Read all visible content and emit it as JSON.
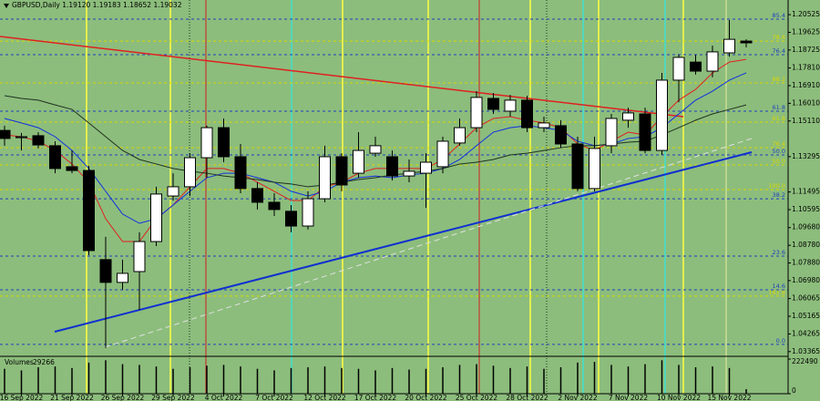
{
  "chart_data": {
    "type": "candlestick",
    "title": "GBPUSD,Daily  1.19120 1.19183 1.18652 1.19032",
    "categories": [
      null,
      "16 Sep 2022",
      null,
      null,
      "21 Sep 2022",
      null,
      null,
      "26 Sep 2022",
      null,
      null,
      "29 Sep 2022",
      null,
      null,
      "4 Oct 2022",
      null,
      null,
      "7 Oct 2022",
      null,
      null,
      "12 Oct 2022",
      null,
      null,
      "17 Oct 2022",
      null,
      null,
      "20 Oct 2022",
      null,
      null,
      "25 Oct 2022",
      null,
      null,
      "28 Oct 2022",
      null,
      null,
      "2 Nov 2022",
      null,
      null,
      "7 Nov 2022",
      null,
      null,
      "10 Nov 2022",
      null,
      null,
      "15 Nov 2022",
      null
    ],
    "open": [
      1.1463,
      1.1426,
      1.1436,
      1.1385,
      1.1278,
      1.1259,
      1.0805,
      1.0689,
      1.0744,
      1.0897,
      1.1129,
      1.1176,
      1.1324,
      1.1477,
      1.1329,
      1.1167,
      1.1097,
      1.1051,
      1.0976,
      1.1115,
      1.1329,
      1.1245,
      1.1347,
      1.1329,
      1.1231,
      1.1245,
      1.1278,
      1.1399,
      1.1477,
      1.1626,
      1.1561,
      1.1617,
      1.1477,
      1.1487,
      1.1394,
      1.1167,
      1.1385,
      1.1515,
      1.1547,
      1.1361,
      1.1719,
      1.1811,
      1.1765,
      1.1858,
      1.1918
    ],
    "high": [
      1.1487,
      1.145,
      1.1454,
      1.1408,
      1.1361,
      1.1283,
      1.0921,
      1.0805,
      1.0944,
      1.1176,
      1.1245,
      1.1347,
      1.1487,
      1.1524,
      1.1394,
      1.1199,
      1.1143,
      1.1083,
      1.1153,
      1.1385,
      1.1347,
      1.1454,
      1.1431,
      1.1361,
      1.1315,
      1.1347,
      1.1431,
      1.1524,
      1.1663,
      1.1654,
      1.1644,
      1.164,
      1.1533,
      1.1515,
      1.1431,
      1.1431,
      1.1547,
      1.1579,
      1.1579,
      1.1756,
      1.1849,
      1.1849,
      1.1895,
      1.2025,
      1.1927
    ],
    "low": [
      1.1385,
      1.1361,
      1.1371,
      1.1245,
      1.1245,
      1.0828,
      1.0355,
      1.0651,
      1.0549,
      1.0874,
      1.1106,
      1.1129,
      1.1222,
      1.1301,
      1.1143,
      1.106,
      1.1027,
      1.0944,
      1.0958,
      1.1097,
      1.1153,
      1.1222,
      1.1329,
      1.1208,
      1.1199,
      1.1069,
      1.1245,
      1.1385,
      1.1454,
      1.1547,
      1.1533,
      1.1454,
      1.1454,
      1.1375,
      1.1153,
      1.1153,
      1.1347,
      1.1477,
      1.1347,
      1.1338,
      1.1607,
      1.1747,
      1.1733,
      1.1839,
      1.1886
    ],
    "close": [
      1.1422,
      1.1431,
      1.1389,
      1.1269,
      1.1259,
      1.0851,
      1.0689,
      1.0735,
      1.0897,
      1.1139,
      1.1176,
      1.1324,
      1.1477,
      1.1329,
      1.1167,
      1.1097,
      1.106,
      1.0976,
      1.1115,
      1.1329,
      1.1185,
      1.1361,
      1.1385,
      1.1231,
      1.1255,
      1.1301,
      1.1408,
      1.1477,
      1.1631,
      1.157,
      1.1617,
      1.1477,
      1.1501,
      1.1394,
      1.1167,
      1.1371,
      1.1524,
      1.1552,
      1.1361,
      1.1719,
      1.1835,
      1.1765,
      1.1863,
      1.1927,
      1.1909
    ],
    "up_color": "#ffffff",
    "down_color": "#000000",
    "lines": [
      {
        "color": "#e02020",
        "values": [
          1.144,
          1.1431,
          1.1408,
          1.1361,
          1.1292,
          1.1199,
          1.1013,
          1.0897,
          1.0897,
          1.1013,
          1.1083,
          1.1176,
          1.1269,
          1.1269,
          1.1245,
          1.1199,
          1.1153,
          1.1106,
          1.1106,
          1.1176,
          1.1199,
          1.1245,
          1.1269,
          1.1269,
          1.1269,
          1.1269,
          1.1315,
          1.1394,
          1.1477,
          1.1524,
          1.1533,
          1.1515,
          1.1501,
          1.1477,
          1.1394,
          1.1361,
          1.1408,
          1.1454,
          1.144,
          1.1533,
          1.1617,
          1.1672,
          1.1756,
          1.1811,
          1.1825
        ]
      },
      {
        "color": "#1030e0",
        "values": [
          1.1524,
          1.1501,
          1.1477,
          1.1431,
          1.1361,
          1.1269,
          1.1153,
          1.1037,
          1.099,
          1.1013,
          1.1083,
          1.1153,
          1.1222,
          1.1245,
          1.1245,
          1.1222,
          1.1199,
          1.1153,
          1.1129,
          1.1153,
          1.1199,
          1.1222,
          1.1231,
          1.1222,
          1.1236,
          1.1245,
          1.1269,
          1.1315,
          1.1385,
          1.1454,
          1.1477,
          1.1487,
          1.1477,
          1.1463,
          1.1408,
          1.1385,
          1.1394,
          1.1422,
          1.1431,
          1.1477,
          1.1547,
          1.1617,
          1.1663,
          1.1719,
          1.1756
        ]
      },
      {
        "color": "#203020",
        "values": [
          1.164,
          1.1626,
          1.1617,
          1.1593,
          1.157,
          1.1501,
          1.1431,
          1.1361,
          1.1315,
          1.1292,
          1.1269,
          1.1255,
          1.1245,
          1.1231,
          1.1222,
          1.1213,
          1.1199,
          1.119,
          1.1176,
          1.1185,
          1.1199,
          1.1213,
          1.1222,
          1.1236,
          1.1245,
          1.1255,
          1.1269,
          1.1292,
          1.1301,
          1.1315,
          1.1338,
          1.1347,
          1.1361,
          1.1375,
          1.1385,
          1.1385,
          1.1394,
          1.1403,
          1.1408,
          1.144,
          1.1477,
          1.1515,
          1.1547,
          1.157,
          1.1593
        ]
      }
    ],
    "levels": [
      {
        "label": "85.4",
        "value": 1.203,
        "color": "#2040c0"
      },
      {
        "label": "78.6",
        "value": 1.1918,
        "color": "#d8d800"
      },
      {
        "label": "76.4",
        "value": 1.1849,
        "color": "#2040c0"
      },
      {
        "label": "88.2",
        "value": 1.1705,
        "color": "#d8d800"
      },
      {
        "label": "61.8",
        "value": 1.1561,
        "color": "#2040c0"
      },
      {
        "label": "61.8",
        "value": 1.1505,
        "color": "#d8d800"
      },
      {
        "label": "76.4",
        "value": 1.1375,
        "color": "#d8d800"
      },
      {
        "label": "50.0",
        "value": 1.1338,
        "color": "#2040c0"
      },
      {
        "label": "50.0",
        "value": 1.1287,
        "color": "#d8d800"
      },
      {
        "label": "100.0",
        "value": 1.1162,
        "color": "#d8d800"
      },
      {
        "label": "38.2",
        "value": 1.1115,
        "color": "#2040c0"
      },
      {
        "label": "23.6",
        "value": 1.0823,
        "color": "#2040c0"
      },
      {
        "label": "14.6",
        "value": 1.0651,
        "color": "#2040c0"
      },
      {
        "label": "161.8",
        "value": 1.0619,
        "color": "#d8d800"
      },
      {
        "label": "0.0",
        "value": 1.0373,
        "color": "#2040c0"
      }
    ],
    "ylim": [
      1.0317,
      1.2104
    ],
    "yticks": [
      1.20525,
      1.19625,
      1.18725,
      {
        "value": 1.1781,
        "label": "1.17810"
      },
      {
        "value": 1.1691,
        "label": "1.16910"
      },
      {
        "value": 1.1601,
        "label": "1.16010"
      },
      {
        "value": 1.1511,
        "label": "1.15110"
      },
      1.13295,
      1.11495,
      1.10595,
      {
        "value": 1.0968,
        "label": "1.09680"
      },
      {
        "value": 1.0878,
        "label": "1.08780"
      },
      {
        "value": 1.0788,
        "label": "1.07880"
      },
      {
        "value": 1.0698,
        "label": "1.06980"
      },
      1.06065,
      1.05165,
      1.04265,
      1.03365
    ],
    "volume": {
      "label": "Volumes",
      "values": [
        160000,
        150000,
        170000,
        175000,
        165000,
        200000,
        215000,
        190000,
        185000,
        175000,
        160000,
        170000,
        180000,
        185000,
        175000,
        160000,
        150000,
        165000,
        170000,
        175000,
        165000,
        160000,
        150000,
        165000,
        155000,
        160000,
        170000,
        185000,
        190000,
        180000,
        165000,
        175000,
        160000,
        170000,
        200000,
        205000,
        185000,
        175000,
        190000,
        215000,
        185000,
        170000,
        175000,
        165000,
        29266
      ],
      "y2lim": [
        0,
        222490
      ],
      "y2ticks": [
        222490,
        0
      ]
    }
  }
}
